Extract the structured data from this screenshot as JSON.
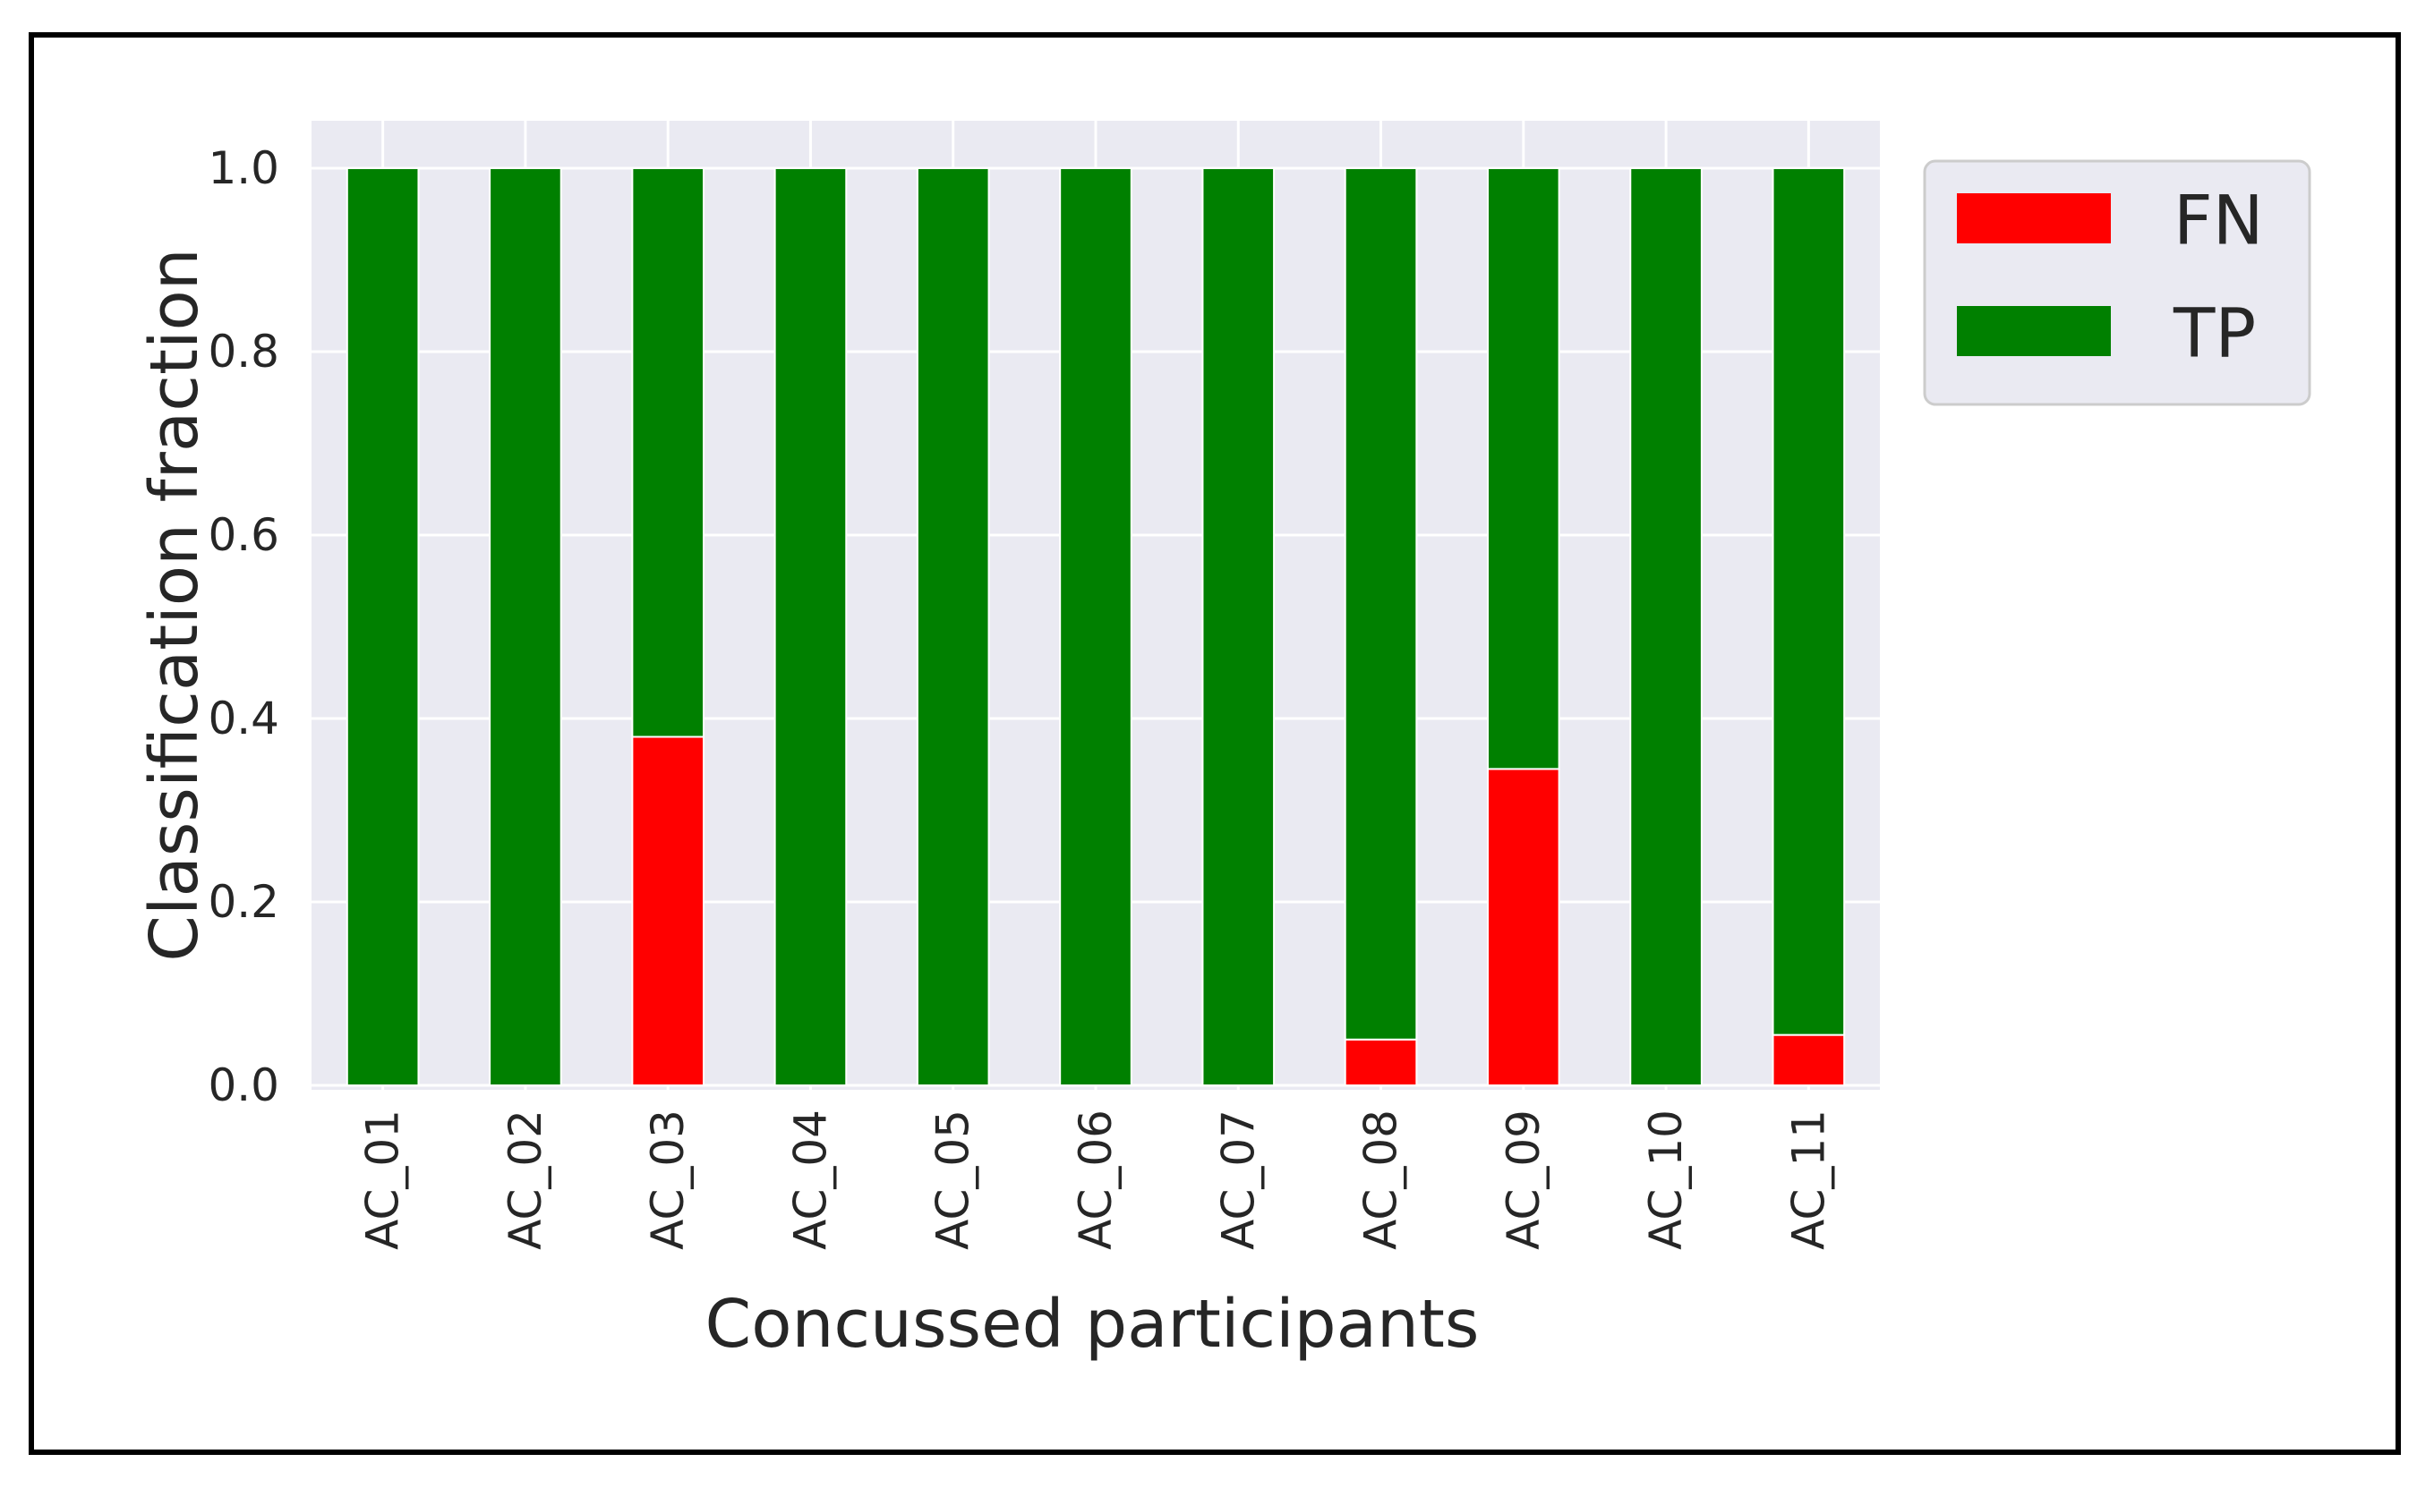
{
  "chart_data": {
    "type": "bar",
    "stacked": true,
    "categories": [
      "AC_01",
      "AC_02",
      "AC_03",
      "AC_04",
      "AC_05",
      "AC_06",
      "AC_07",
      "AC_08",
      "AC_09",
      "AC_10",
      "AC_11"
    ],
    "series": [
      {
        "name": "FN",
        "color": "#ff0000",
        "values": [
          0.0,
          0.0,
          0.38,
          0.0,
          0.0,
          0.0,
          0.0,
          0.05,
          0.345,
          0.0,
          0.055
        ]
      },
      {
        "name": "TP",
        "color": "#008000",
        "values": [
          1.0,
          1.0,
          0.62,
          1.0,
          1.0,
          1.0,
          1.0,
          0.95,
          0.655,
          1.0,
          0.945
        ]
      }
    ],
    "xlabel": "Concussed participants",
    "ylabel": "Classification fraction",
    "ylim": [
      0.0,
      1.05
    ],
    "yticks": [
      "0.0",
      "0.2",
      "0.4",
      "0.6",
      "0.8",
      "1.0"
    ],
    "grid": true,
    "legend_position": "top-right",
    "background_color": "#eaeaf2",
    "grid_color": "#ffffff"
  }
}
